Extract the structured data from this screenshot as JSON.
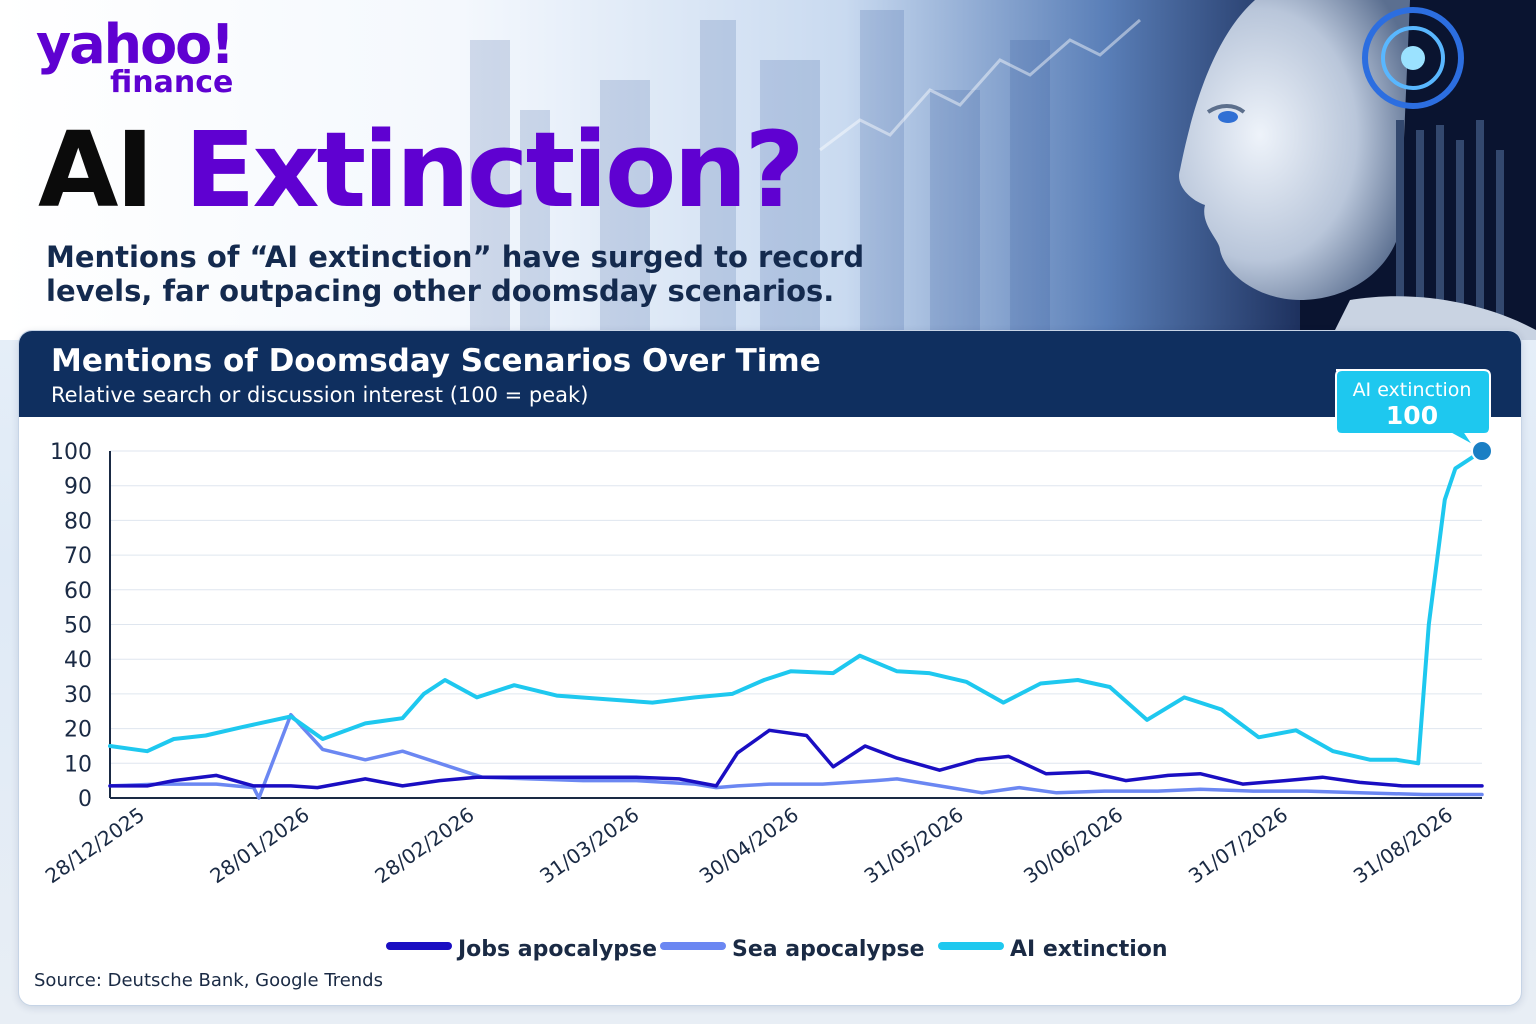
{
  "brand": {
    "logo_line1": "yahoo!",
    "logo_line2": "finance"
  },
  "headline": {
    "part1": "AI",
    "part2": "Extinction?"
  },
  "subheadline": "Mentions of “AI extinction” have surged to record levels, far outpacing other doomsday scenarios.",
  "source": "Source: Deutsche Bank, Google Trends",
  "colors": {
    "brand_purple": "#5f01d1",
    "header_navy": "#0f2f5f",
    "jobs": "#1a0ec2",
    "sea": "#6b87f2",
    "ai": "#1ec8ef",
    "callout_dot": "#1a7fc4"
  },
  "chart_data": {
    "type": "line",
    "title": "Mentions of Doomsday Scenarios Over Time",
    "subtitle": "Relative search or discussion interest (100 = peak)",
    "xlabel": "",
    "ylabel": "",
    "ylim": [
      0,
      100
    ],
    "yticks": [
      0,
      10,
      20,
      30,
      40,
      50,
      60,
      70,
      80,
      90,
      100
    ],
    "grid": true,
    "legend_position": "bottom",
    "x_tick_dates": [
      "2025-12-28",
      "2026-01-28",
      "2026-02-28",
      "2026-03-31",
      "2026-04-30",
      "2026-05-31",
      "2026-06-30",
      "2026-07-31",
      "2026-08-31"
    ],
    "x_tick_labels": [
      "28/12/2025",
      "28/01/2026",
      "28/02/2026",
      "31/03/2026",
      "30/04/2026",
      "31/05/2026",
      "30/06/2026",
      "31/07/2026",
      "31/08/2026"
    ],
    "series": [
      {
        "name": "Jobs apocalypse",
        "points": [
          [
            "2025-12-28",
            3.5
          ],
          [
            "2026-01-04",
            3.5
          ],
          [
            "2026-01-09",
            5
          ],
          [
            "2026-01-17",
            6.5
          ],
          [
            "2026-01-24",
            3.5
          ],
          [
            "2026-01-31",
            3.5
          ],
          [
            "2026-02-05",
            3
          ],
          [
            "2026-02-14",
            5.5
          ],
          [
            "2026-02-21",
            3.5
          ],
          [
            "2026-02-28",
            5
          ],
          [
            "2026-03-07",
            6
          ],
          [
            "2026-03-17",
            6
          ],
          [
            "2026-03-27",
            6
          ],
          [
            "2026-04-06",
            6
          ],
          [
            "2026-04-14",
            5.5
          ],
          [
            "2026-04-21",
            3.5
          ],
          [
            "2026-04-25",
            13
          ],
          [
            "2026-05-01",
            19.5
          ],
          [
            "2026-05-08",
            18
          ],
          [
            "2026-05-13",
            9
          ],
          [
            "2026-05-19",
            15
          ],
          [
            "2026-05-25",
            11.5
          ],
          [
            "2026-06-02",
            8
          ],
          [
            "2026-06-09",
            11
          ],
          [
            "2026-06-15",
            12
          ],
          [
            "2026-06-22",
            7
          ],
          [
            "2026-06-30",
            7.5
          ],
          [
            "2026-07-07",
            5
          ],
          [
            "2026-07-15",
            6.5
          ],
          [
            "2026-07-21",
            7
          ],
          [
            "2026-07-29",
            4
          ],
          [
            "2026-08-06",
            5
          ],
          [
            "2026-08-13",
            6
          ],
          [
            "2026-08-20",
            4.5
          ],
          [
            "2026-08-28",
            3.5
          ],
          [
            "2026-09-05",
            3.5
          ],
          [
            "2026-09-12",
            3.5
          ]
        ]
      },
      {
        "name": "Sea apocalypse",
        "points": [
          [
            "2025-12-28",
            3.5
          ],
          [
            "2026-01-06",
            4
          ],
          [
            "2026-01-17",
            4
          ],
          [
            "2026-01-24",
            3
          ],
          [
            "2026-01-25",
            0
          ],
          [
            "2026-01-31",
            24
          ],
          [
            "2026-02-06",
            14
          ],
          [
            "2026-02-14",
            11
          ],
          [
            "2026-02-21",
            13.5
          ],
          [
            "2026-03-02",
            9
          ],
          [
            "2026-03-08",
            6
          ],
          [
            "2026-03-17",
            5.5
          ],
          [
            "2026-03-27",
            5
          ],
          [
            "2026-04-06",
            5
          ],
          [
            "2026-04-17",
            4
          ],
          [
            "2026-04-21",
            3
          ],
          [
            "2026-04-25",
            3.5
          ],
          [
            "2026-05-01",
            4
          ],
          [
            "2026-05-11",
            4
          ],
          [
            "2026-05-21",
            5
          ],
          [
            "2026-05-25",
            5.5
          ],
          [
            "2026-06-02",
            3.5
          ],
          [
            "2026-06-10",
            1.5
          ],
          [
            "2026-06-17",
            3
          ],
          [
            "2026-06-24",
            1.5
          ],
          [
            "2026-07-03",
            2
          ],
          [
            "2026-07-13",
            2
          ],
          [
            "2026-07-21",
            2.5
          ],
          [
            "2026-07-31",
            2
          ],
          [
            "2026-08-10",
            2
          ],
          [
            "2026-08-20",
            1.5
          ],
          [
            "2026-09-01",
            1
          ],
          [
            "2026-09-12",
            1
          ]
        ]
      },
      {
        "name": "AI extinction",
        "points": [
          [
            "2025-12-28",
            15
          ],
          [
            "2026-01-04",
            13.5
          ],
          [
            "2026-01-09",
            17
          ],
          [
            "2026-01-15",
            18
          ],
          [
            "2026-01-22",
            20.5
          ],
          [
            "2026-01-31",
            23.5
          ],
          [
            "2026-02-06",
            17
          ],
          [
            "2026-02-14",
            21.5
          ],
          [
            "2026-02-21",
            23
          ],
          [
            "2026-02-25",
            30
          ],
          [
            "2026-03-01",
            34
          ],
          [
            "2026-03-07",
            29
          ],
          [
            "2026-03-14",
            32.5
          ],
          [
            "2026-03-22",
            29.5
          ],
          [
            "2026-03-31",
            28.5
          ],
          [
            "2026-04-09",
            27.5
          ],
          [
            "2026-04-17",
            29
          ],
          [
            "2026-04-24",
            30
          ],
          [
            "2026-04-30",
            34
          ],
          [
            "2026-05-05",
            36.5
          ],
          [
            "2026-05-13",
            36
          ],
          [
            "2026-05-18",
            41
          ],
          [
            "2026-05-25",
            36.5
          ],
          [
            "2026-05-31",
            36
          ],
          [
            "2026-06-07",
            33.5
          ],
          [
            "2026-06-14",
            27.5
          ],
          [
            "2026-06-21",
            33
          ],
          [
            "2026-06-28",
            34
          ],
          [
            "2026-07-04",
            32
          ],
          [
            "2026-07-11",
            22.5
          ],
          [
            "2026-07-18",
            29
          ],
          [
            "2026-07-25",
            25.5
          ],
          [
            "2026-08-01",
            17.5
          ],
          [
            "2026-08-08",
            19.5
          ],
          [
            "2026-08-15",
            13.5
          ],
          [
            "2026-08-22",
            11
          ],
          [
            "2026-08-27",
            11
          ],
          [
            "2026-08-31",
            10
          ],
          [
            "2026-09-02",
            50
          ],
          [
            "2026-09-05",
            86
          ],
          [
            "2026-09-07",
            95
          ],
          [
            "2026-09-12",
            100
          ]
        ]
      }
    ],
    "callout": {
      "series": "AI extinction",
      "date": "2026-09-12",
      "label": "AI extinction",
      "value": "100"
    }
  }
}
